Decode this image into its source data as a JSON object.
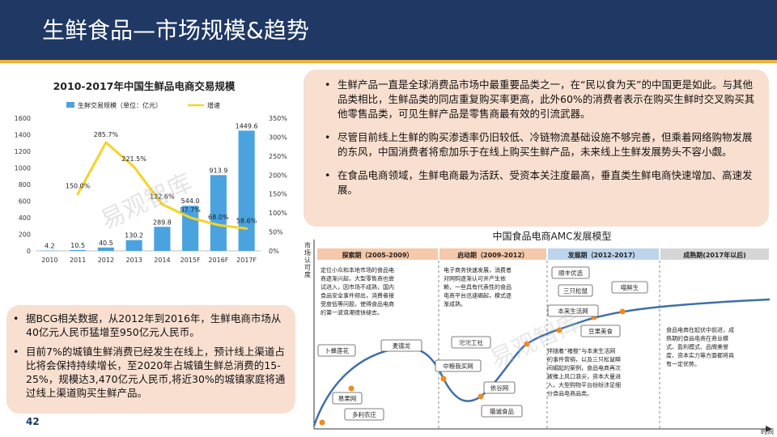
{
  "header": {
    "title": "生鲜食品—市场规模&趋势"
  },
  "page_number": "42",
  "watermark": "易观智库",
  "chart_data": {
    "type": "bar",
    "title": "2010-2017年中国生鲜品电商交易规模",
    "categories": [
      "2010",
      "2011",
      "2012",
      "2013",
      "2014",
      "2015F",
      "2016F",
      "2017F"
    ],
    "series": [
      {
        "name": "生鲜交易规模（单位：亿元）",
        "type": "bar",
        "axis": "left",
        "values": [
          4.2,
          10.5,
          40.5,
          130.2,
          289.8,
          544.0,
          913.9,
          1449.6
        ],
        "labels": [
          "4.2",
          "10.5",
          "40.5",
          "130.2",
          "289.8",
          "544.0",
          "913.9",
          "1449.6"
        ]
      },
      {
        "name": "增速",
        "type": "line",
        "axis": "right",
        "values": [
          null,
          150.0,
          285.7,
          221.5,
          122.6,
          87.7,
          68.0,
          58.6
        ],
        "labels": [
          "",
          "150.0%",
          "285.7%",
          "221.5%",
          "122.6%",
          "87.7%",
          "68.0%",
          "58.6%"
        ]
      }
    ],
    "left_ticks": [
      "0",
      "200",
      "400",
      "600",
      "800",
      "1000",
      "1200",
      "1400",
      "1600"
    ],
    "right_ticks": [
      "0%",
      "50%",
      "100%",
      "150%",
      "200%",
      "250%",
      "300%",
      "350%"
    ],
    "ylim_left": [
      0,
      1600
    ],
    "ylim_right": [
      0,
      350
    ],
    "legend_position": "top",
    "colors": {
      "bar": "#4aa3df",
      "line": "#f5d328"
    }
  },
  "right_bullets": [
    "生鲜产品一直是全球消费品市场中最重要品类之一，在“民以食为天”的中国更是如此。与其他品类相比，生鲜品类的同店重复购买率更高，此外60%的消费者表示在购买生鲜时交叉购买其他零售品类，可见生鲜产品是零售商最有效的引流武器。",
    "尽管目前线上生鲜的购买渗透率仍旧较低、冷链物流基础设施不够完善，但乘着网络购物发展的东风，中国消费者将愈加乐于在线上购买生鲜产品，未来线上生鲜发展势头不容小觑。",
    "在食品电商领域，生鲜电商最为活跃、受资本关注度最高，垂直类生鲜电商快速增加、高速发展。"
  ],
  "left_bullets": [
    "据BCG相关数据，从2012年到2016年，生鲜电商市场从40亿元人民币猛增至950亿元人民币。",
    "目前7%的城镇生鲜消费已经发生在线上，预计线上渠道占比将会保持持续增长，至2020年占城镇生鲜总消费的15-25%，规模达3,470亿元人民币,将近30%的城镇家庭将通过线上渠道购买生鲜产品。"
  ],
  "amc": {
    "title": "中国食品电商AMC发展模型",
    "y_label": "市场认可度",
    "x_label": "时间",
    "phases": [
      {
        "name": "探索期（2005-2009）",
        "desc": [
          "定位小众和本地市场的食品电",
          "商逐渐兴起，大型零售商也尝",
          "试进入，因市场不成熟，国内",
          "食品安全事件频出，消费者接",
          "受度低等问题，使得食品电商",
          "的第一波浪潮很快褪去。"
        ],
        "color": "#f5c9a9"
      },
      {
        "name": "启动期（2009-2012）",
        "desc": [
          "电子商务快速发展，消费者",
          "对网购逐渐认可并产生依",
          "赖，一些具有代表性的食品",
          "电商平台迅速崛起，模式逐",
          "渐成熟。"
        ],
        "color": "#f5c9a9"
      },
      {
        "name": "发展期（2012-2017）",
        "desc": [
          "伴随着“褚橙”与本来生活网",
          "的事件营销，以及三只松鼠瞬",
          "间崛起的案例，食品电商再次",
          "被推上风口浪尖，资本大量进",
          "入，大型购物平台纷纷涉足细",
          "分食品电商品类。"
        ],
        "color": "#bcd5ec"
      },
      {
        "name": "成熟期(2017年以后)",
        "desc": [
          "食品电商在起伏中前进，成",
          "熟期的食品电商在商业模",
          "式、盈利模式、品牌美誉",
          "度、资本实力等方面都将具",
          "有一定优势。"
        ],
        "color": "#d6d6d6"
      }
    ],
    "companies": [
      "卜蜂莲花",
      "麦德龙",
      "易果网",
      "多利农庄",
      "沱沱工社",
      "中粮我买网",
      "依谷网",
      "猫诚食品",
      "顺丰优选",
      "三只松鼠",
      "喵鲜生",
      "本来生活网",
      "豆果美食"
    ]
  }
}
